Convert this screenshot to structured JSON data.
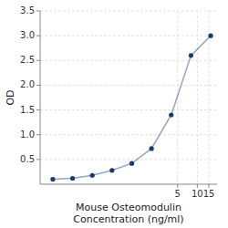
{
  "chart_data": {
    "type": "line",
    "xlabel": "Mouse Osteomodulin\nConcentration (ng/ml)",
    "ylabel": "OD",
    "log": "x",
    "grid": true,
    "x": [
      0.0625,
      0.125,
      0.25,
      0.5,
      1,
      2,
      4,
      8,
      16
    ],
    "xlim": [
      0.04,
      20
    ],
    "xticks": [
      5,
      10,
      15
    ],
    "ylim": [
      0,
      3.5
    ],
    "yticks": [
      0.5,
      {
        "value": 1,
        "label": "1.0"
      },
      1.5,
      {
        "value": 2,
        "label": "2.0"
      },
      2.5,
      {
        "value": 3,
        "label": "3.0"
      },
      3.5
    ],
    "series": [
      {
        "color": "#1a3a6b",
        "marker": "circle",
        "values": [
          0.1,
          0.12,
          0.18,
          0.28,
          0.42,
          0.72,
          1.4,
          2.6,
          3.0
        ]
      }
    ]
  }
}
